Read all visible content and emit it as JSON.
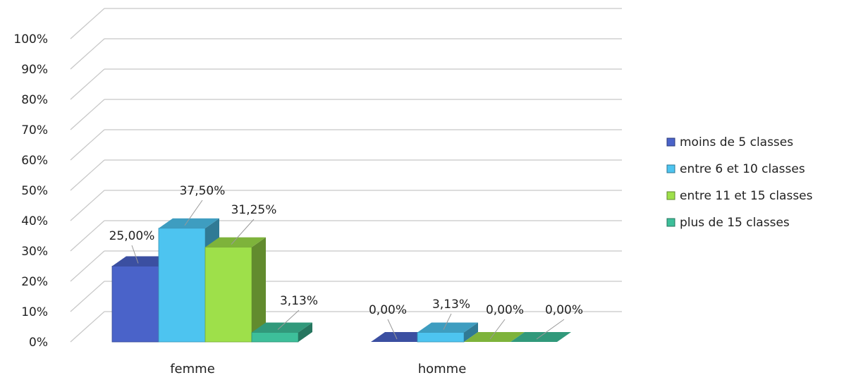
{
  "chart_data": {
    "type": "bar",
    "categories": [
      "femme",
      "homme"
    ],
    "series": [
      {
        "name": "moins de 5 classes",
        "values": [
          25.0,
          0.0
        ],
        "labels": [
          "25,00%",
          "0,00%"
        ],
        "color": "#4a63c9"
      },
      {
        "name": "entre 6 et 10 classes",
        "values": [
          37.5,
          3.13
        ],
        "labels": [
          "37,50%",
          "3,13%"
        ],
        "color": "#4dc4f0"
      },
      {
        "name": "entre 11 et 15 classes",
        "values": [
          31.25,
          0.0
        ],
        "labels": [
          "31,25%",
          "0,00%"
        ],
        "color": "#9ee04a"
      },
      {
        "name": "plus de 15 classes",
        "values": [
          3.13,
          0.0
        ],
        "labels": [
          "3,13%",
          "0,00%"
        ],
        "color": "#3dbf9a"
      }
    ],
    "yticks": [
      "0%",
      "10%",
      "20%",
      "30%",
      "40%",
      "50%",
      "60%",
      "70%",
      "80%",
      "90%",
      "100%"
    ],
    "ylim": [
      0,
      100
    ],
    "grid": true,
    "legend_position": "right",
    "three_d": true
  }
}
